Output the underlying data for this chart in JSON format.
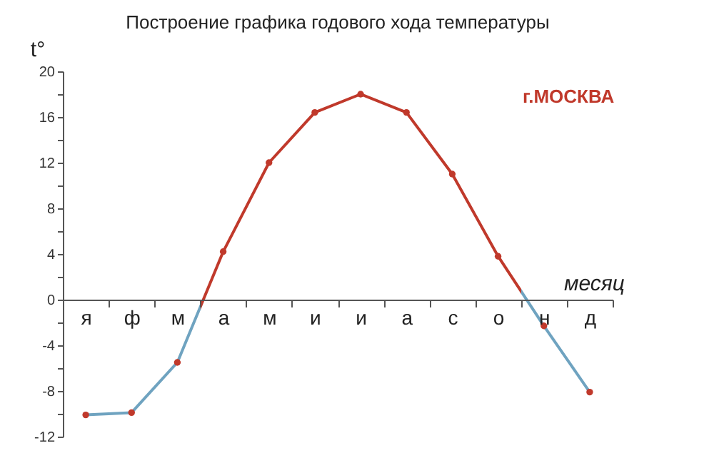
{
  "chart_data": {
    "type": "line",
    "title": "Построение графика годового хода температуры",
    "ylabel": "t°",
    "xlabel": "месяц",
    "annotations": [
      "г.МОСКВА"
    ],
    "categories": [
      "я",
      "ф",
      "м",
      "а",
      "м",
      "и",
      "и",
      "а",
      "с",
      "о",
      "н",
      "д"
    ],
    "series": [
      {
        "color": "#c0392b",
        "colors": [
          "#6fa3c0",
          "#6fa3c0",
          "#6fa3c0",
          "#c0392b",
          "#c0392b",
          "#c0392b",
          "#c0392b",
          "#c0392b",
          "#c0392b",
          "#c0392b",
          "#6fa3c0",
          "#6fa3c0"
        ],
        "values": [
          -10.1,
          -9.9,
          -5.5,
          4.2,
          12,
          16.4,
          18,
          16.4,
          11,
          3.8,
          -2.3,
          -8.1
        ]
      }
    ],
    "ylim": [
      -12,
      20
    ],
    "yticks": [
      -12,
      {
        "value": -10,
        "label": null
      },
      -8,
      {
        "value": -6,
        "label": null
      },
      -4,
      {
        "value": -2,
        "label": null
      },
      0,
      {
        "value": 2,
        "label": null
      },
      4,
      {
        "value": 6,
        "label": null
      },
      8,
      {
        "value": 10,
        "label": null
      },
      12,
      {
        "value": 14,
        "label": null
      },
      16,
      {
        "value": 18,
        "label": null
      },
      20
    ],
    "marker": "circle",
    "line_style": "solid",
    "grid": false
  }
}
